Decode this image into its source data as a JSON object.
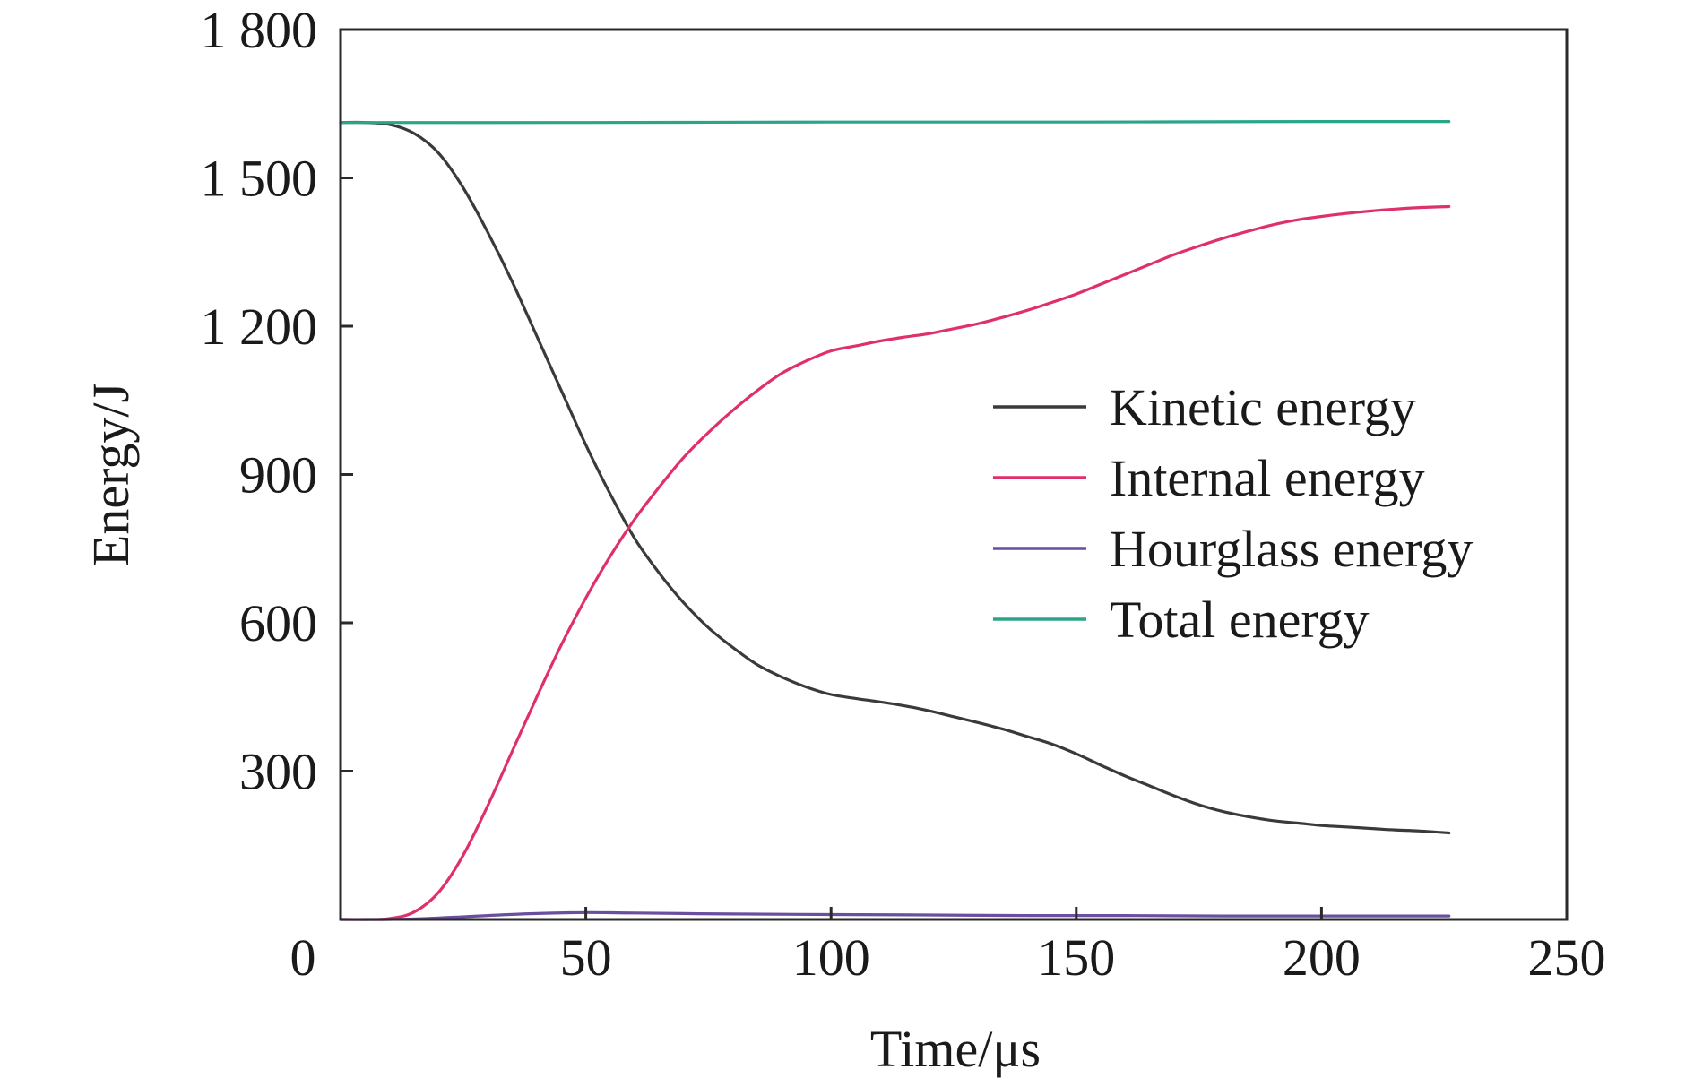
{
  "chart_data": {
    "type": "line",
    "title": "",
    "xlabel": "Time/μs",
    "ylabel": "Energy/J",
    "xlim": [
      0,
      250
    ],
    "ylim": [
      0,
      1800
    ],
    "xticks": [
      0,
      50,
      100,
      150,
      200,
      250
    ],
    "xtick_labels": [
      "0",
      "50",
      "100",
      "150",
      "200",
      "250"
    ],
    "yticks": [
      300,
      600,
      900,
      1200,
      1500,
      1800
    ],
    "ytick_labels": [
      "300",
      "600",
      "900",
      "1 200",
      "1 500",
      "1 800"
    ],
    "grid": false,
    "legend_position": "center-right",
    "series": [
      {
        "name": "Kinetic energy",
        "color": "#3a3a3a",
        "x": [
          0,
          5,
          10,
          15,
          20,
          25,
          30,
          35,
          40,
          45,
          50,
          55,
          60,
          65,
          70,
          75,
          80,
          85,
          90,
          95,
          100,
          105,
          110,
          115,
          120,
          125,
          130,
          135,
          140,
          145,
          150,
          155,
          160,
          165,
          170,
          175,
          180,
          185,
          190,
          195,
          200,
          205,
          210,
          215,
          220,
          226
        ],
        "y": [
          1612,
          1612,
          1608,
          1590,
          1550,
          1480,
          1390,
          1290,
          1180,
          1070,
          960,
          860,
          770,
          700,
          640,
          590,
          550,
          515,
          490,
          470,
          455,
          447,
          440,
          432,
          422,
          410,
          398,
          385,
          370,
          355,
          335,
          312,
          290,
          270,
          250,
          232,
          218,
          208,
          200,
          195,
          190,
          187,
          184,
          181,
          179,
          175
        ]
      },
      {
        "name": "Internal energy",
        "color": "#e0306a",
        "x": [
          0,
          5,
          10,
          15,
          20,
          25,
          30,
          35,
          40,
          45,
          50,
          55,
          60,
          65,
          70,
          75,
          80,
          85,
          90,
          95,
          100,
          105,
          110,
          115,
          120,
          125,
          130,
          135,
          140,
          145,
          150,
          155,
          160,
          165,
          170,
          175,
          180,
          185,
          190,
          195,
          200,
          205,
          210,
          215,
          220,
          226
        ],
        "y": [
          0,
          0,
          2,
          15,
          55,
          130,
          230,
          340,
          450,
          555,
          650,
          735,
          810,
          875,
          935,
          985,
          1030,
          1070,
          1105,
          1130,
          1150,
          1160,
          1170,
          1178,
          1185,
          1195,
          1205,
          1218,
          1232,
          1248,
          1265,
          1285,
          1305,
          1325,
          1345,
          1362,
          1378,
          1392,
          1405,
          1415,
          1422,
          1428,
          1433,
          1437,
          1440,
          1442
        ]
      },
      {
        "name": "Hourglass energy",
        "color": "#6a4ea0",
        "x": [
          0,
          10,
          20,
          30,
          40,
          50,
          60,
          80,
          100,
          120,
          140,
          160,
          180,
          200,
          226
        ],
        "y": [
          0,
          0,
          3,
          8,
          12,
          14,
          13,
          11,
          10,
          9,
          8,
          8,
          7,
          7,
          7
        ]
      },
      {
        "name": "Total energy",
        "color": "#2aa58a",
        "x": [
          0,
          50,
          100,
          150,
          200,
          226
        ],
        "y": [
          1612,
          1612,
          1613,
          1613,
          1614,
          1614
        ]
      }
    ]
  }
}
